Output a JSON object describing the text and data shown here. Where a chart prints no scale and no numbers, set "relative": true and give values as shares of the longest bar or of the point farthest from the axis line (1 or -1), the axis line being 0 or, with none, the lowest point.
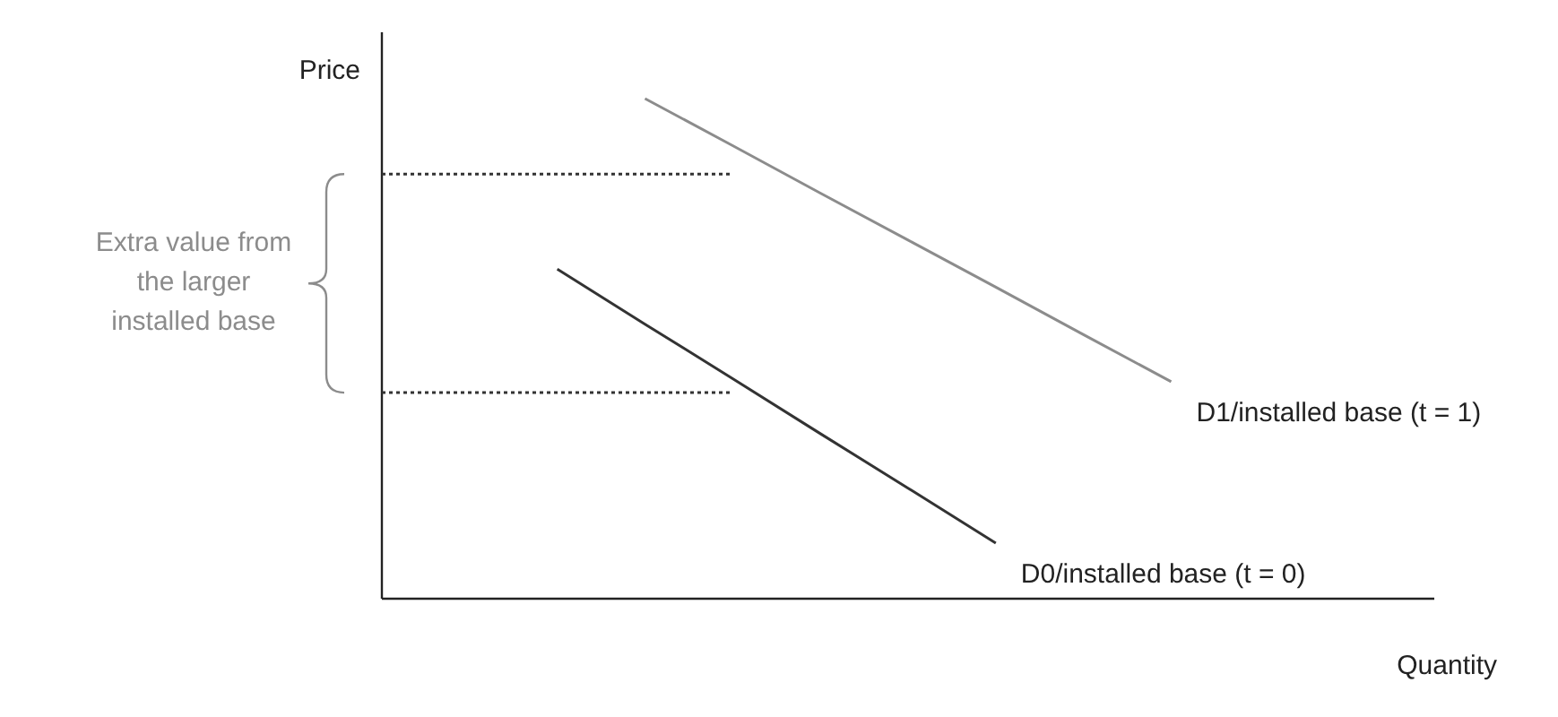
{
  "chart_data": {
    "type": "line",
    "relative": true,
    "xlabel": "Quantity",
    "ylabel": "Price",
    "legend": false,
    "line_style": "solid",
    "marker": "none",
    "annotations": [
      "Extra value from the larger installed base"
    ],
    "categories": [
      null,
      null,
      null,
      null,
      null,
      null,
      null,
      null,
      null,
      null,
      null,
      null,
      null
    ],
    "series": [
      {
        "name": "D1/installed base (t = 1)",
        "color": "#8c8c8c",
        "values": [
          null,
          null,
          null,
          1,
          0.906,
          0.811,
          0.717,
          0.623,
          0.528,
          0.434,
          null,
          null,
          null
        ]
      },
      {
        "name": "D0/installed base (t = 0)",
        "color": "#333333",
        "values": [
          null,
          null,
          0.659,
          0.549,
          0.44,
          0.33,
          0.221,
          0.111,
          null,
          null,
          null,
          null,
          null
        ]
      },
      {
        "color": "#333333",
        "line_style": "dotted",
        "values": [
          0.849,
          0.849,
          0.849,
          0.849,
          0.849,
          null,
          null,
          null,
          null,
          null,
          null,
          null,
          null
        ]
      },
      {
        "color": "#333333",
        "line_style": "dotted",
        "values": [
          0.412,
          0.412,
          0.412,
          0.412,
          0.412,
          null,
          null,
          null,
          null,
          null,
          null,
          null,
          null
        ]
      }
    ]
  }
}
